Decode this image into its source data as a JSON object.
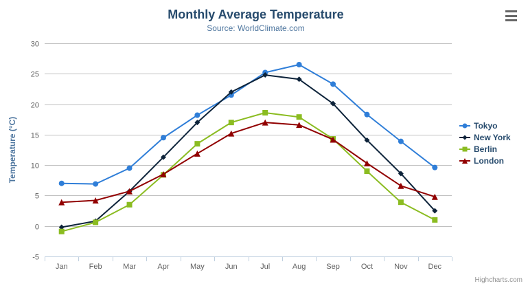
{
  "chart": {
    "title": "Monthly Average Temperature",
    "subtitle": "Source: WorldClimate.com",
    "credits": "Highcharts.com",
    "context_menu_icon": "hamburger-icon"
  },
  "chart_data": {
    "type": "line",
    "title": "Monthly Average Temperature",
    "subtitle": "Source: WorldClimate.com",
    "xlabel": "",
    "ylabel": "Temperature (°C)",
    "ylim": [
      -5,
      30
    ],
    "ytick_step": 5,
    "grid": true,
    "legend_position": "right",
    "grid_color": "#C0C0C0",
    "axis_line_color": "#C0D0E0",
    "axis_label_color": "#606060",
    "axis_title_color": "#4d759e",
    "categories": [
      "Jan",
      "Feb",
      "Mar",
      "Apr",
      "May",
      "Jun",
      "Jul",
      "Aug",
      "Sep",
      "Oct",
      "Nov",
      "Dec"
    ],
    "series": [
      {
        "name": "Tokyo",
        "color": "#2f7ed8",
        "marker": "circle",
        "values": [
          7.0,
          6.9,
          9.5,
          14.5,
          18.2,
          21.5,
          25.2,
          26.5,
          23.3,
          18.3,
          13.9,
          9.6
        ]
      },
      {
        "name": "New York",
        "color": "#0d233a",
        "marker": "diamond",
        "values": [
          -0.2,
          0.8,
          5.7,
          11.3,
          17.0,
          22.0,
          24.8,
          24.1,
          20.1,
          14.1,
          8.6,
          2.5
        ]
      },
      {
        "name": "Berlin",
        "color": "#8bbc21",
        "marker": "square",
        "values": [
          -0.9,
          0.6,
          3.5,
          8.4,
          13.5,
          17.0,
          18.6,
          17.9,
          14.3,
          9.0,
          3.9,
          1.0
        ]
      },
      {
        "name": "London",
        "color": "#910000",
        "marker": "triangle",
        "values": [
          3.9,
          4.2,
          5.7,
          8.5,
          11.9,
          15.2,
          17.0,
          16.6,
          14.2,
          10.3,
          6.6,
          4.8
        ]
      }
    ]
  }
}
